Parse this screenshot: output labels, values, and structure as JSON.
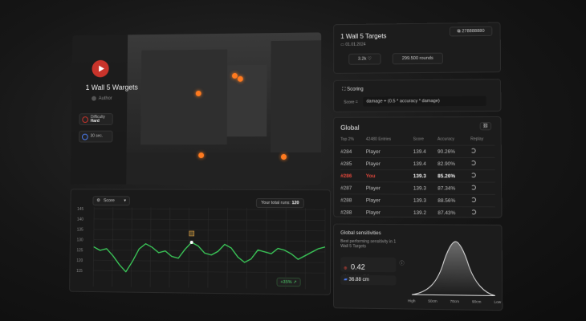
{
  "scenario": {
    "title": "1 Wall 5 Wargets",
    "author": "Author",
    "difficulty_label": "Difficulty",
    "difficulty_value": "Hard",
    "duration": "30 sec."
  },
  "chart": {
    "metric_select": "Score",
    "total_runs_label": "Your total runs:",
    "total_runs_value": "120",
    "change_badge": "+35% ↗",
    "y_ticks": [
      "145",
      "140",
      "135",
      "130",
      "125",
      "120",
      "115"
    ]
  },
  "chart_data": {
    "type": "line",
    "series": [
      {
        "values": [
          128,
          126,
          127,
          123,
          118,
          114,
          120,
          127,
          130,
          128,
          125,
          126,
          123,
          122,
          127,
          131,
          129,
          125,
          124,
          126,
          130,
          128,
          123,
          120,
          122,
          127,
          126,
          125,
          128,
          127,
          125,
          122,
          124,
          126,
          128,
          129
        ]
      }
    ],
    "ylim": [
      110,
      147
    ]
  },
  "info": {
    "title": "1 Wall 5 Targets",
    "date": "01.01.2024",
    "id_badge": "278888880",
    "likes": "3.2k",
    "rounds": "299.500 rounds"
  },
  "scoring": {
    "title": "Scoring",
    "label": "Score =",
    "formula": "damage + (0.5 * accuracy * damage)"
  },
  "global": {
    "title": "Global",
    "headers": [
      "Top 2%",
      "42480 Entries",
      "Score",
      "Accuracy",
      "Replay"
    ],
    "rows": [
      {
        "rank": "#284",
        "player": "Player",
        "score": "139.4",
        "acc": "90.26%"
      },
      {
        "rank": "#285",
        "player": "Player",
        "score": "139.4",
        "acc": "82.90%"
      },
      {
        "rank": "#286",
        "player": "You",
        "score": "139.3",
        "acc": "85.26%"
      },
      {
        "rank": "#287",
        "player": "Player",
        "score": "139.3",
        "acc": "87.34%"
      },
      {
        "rank": "#288",
        "player": "Player",
        "score": "139.3",
        "acc": "88.56%"
      },
      {
        "rank": "#288",
        "player": "Player",
        "score": "139.2",
        "acc": "87.43%"
      }
    ]
  },
  "sens": {
    "title": "Global sensitivities",
    "subtitle": "Best performing sensitivity in 1 Wall 5 Targets",
    "value": "0.42",
    "value_label": "Valorant sensitivity",
    "cm": "36.88 cm",
    "axis": [
      "High",
      "50cm",
      "70cm",
      "90cm",
      "Low"
    ]
  }
}
